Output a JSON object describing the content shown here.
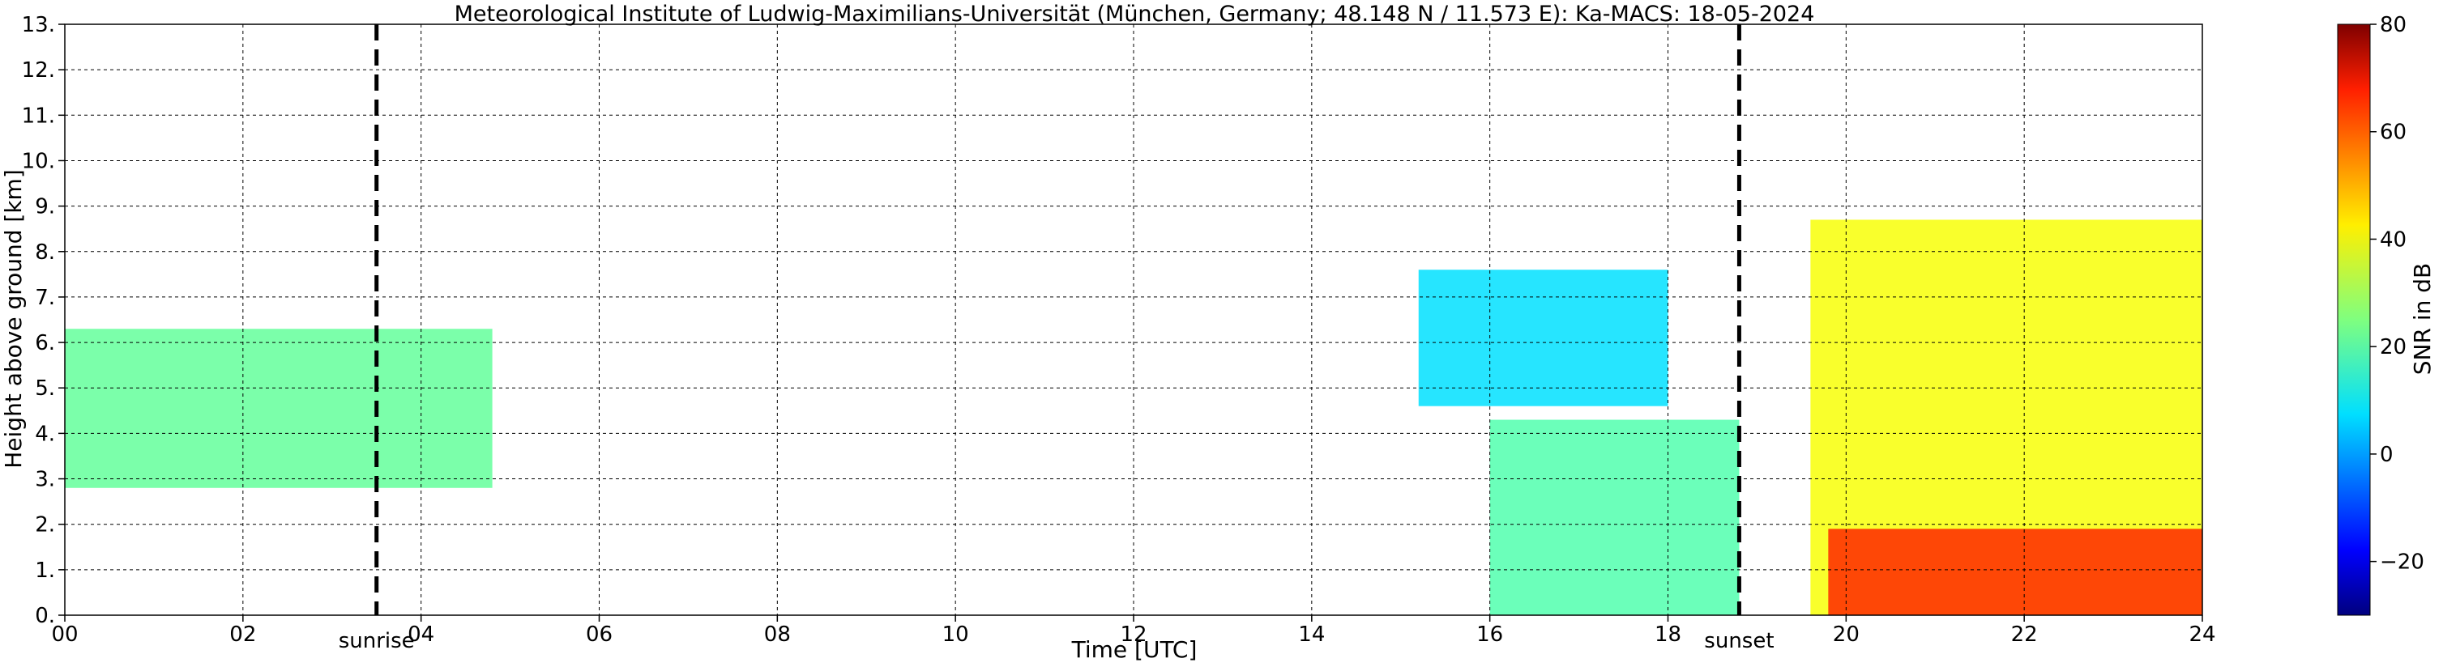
{
  "chart_data": {
    "type": "heatmap",
    "title": "Meteorological Institute of Ludwig-Maximilians-Universität (München, Germany; 48.148 N / 11.573 E):    Ka-MACS: 18-05-2024",
    "xlabel": "Time [UTC]",
    "ylabel": "Height above ground [km]",
    "xlim": [
      0,
      24
    ],
    "ylim": [
      0,
      13
    ],
    "x_ticks": [
      0,
      2,
      4,
      6,
      8,
      10,
      12,
      14,
      16,
      18,
      20,
      22,
      24
    ],
    "x_tick_labels": [
      "00",
      "02",
      "04",
      "06",
      "08",
      "10",
      "12",
      "14",
      "16",
      "18",
      "20",
      "22",
      "24"
    ],
    "y_ticks": [
      0,
      1,
      2,
      3,
      4,
      5,
      6,
      7,
      8,
      9,
      10,
      11,
      12,
      13
    ],
    "y_tick_labels": [
      "0.",
      "1.",
      "2.",
      "3.",
      "4.",
      "5.",
      "6.",
      "7.",
      "8.",
      "9.",
      "10.",
      "11.",
      "12.",
      "13."
    ],
    "grid": true,
    "markers": [
      {
        "label": "sunrise",
        "x": 3.5
      },
      {
        "label": "sunset",
        "x": 18.8
      }
    ],
    "colorbar": {
      "label": "SNR in dB",
      "range": [
        -30,
        80
      ],
      "ticks": [
        -20,
        0,
        20,
        40,
        60,
        80
      ],
      "tick_labels": [
        "−20",
        "0",
        "20",
        "40",
        "60",
        "80"
      ],
      "colormap": "jet"
    },
    "echo_regions": [
      {
        "x": [
          0.0,
          4.8
        ],
        "bottom_km": 2.8,
        "top_km": 6.3,
        "snr_db": 22
      },
      {
        "x": [
          15.2,
          18.0
        ],
        "bottom_km": 4.6,
        "top_km": 7.6,
        "snr_db": 8
      },
      {
        "x": [
          16.0,
          18.8
        ],
        "bottom_km": 0.0,
        "top_km": 4.3,
        "snr_db": 20
      },
      {
        "x": [
          19.6,
          24.0
        ],
        "bottom_km": 0.0,
        "top_km": 8.7,
        "snr_db": 38
      },
      {
        "x": [
          19.8,
          24.0
        ],
        "bottom_km": 0.0,
        "top_km": 1.9,
        "snr_db": 62
      }
    ]
  }
}
